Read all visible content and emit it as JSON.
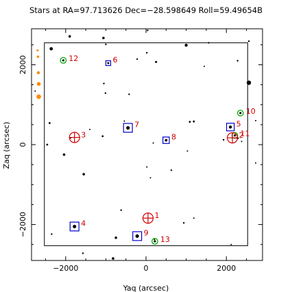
{
  "chart_data": {
    "type": "scatter",
    "title": "Stars at RA=97.713626 Dec=−28.598649 Roll=59.49654B",
    "xlabel": "Yaq (arcsec)",
    "ylabel": "Zaq (arcsec)",
    "xlim": [
      -2850,
      2900
    ],
    "ylim": [
      -2900,
      2900
    ],
    "x_ticks": [
      -2000,
      0,
      2000
    ],
    "x_tick_labels": [
      "−2000",
      "0",
      "2000"
    ],
    "y_ticks": [
      -2000,
      0,
      2000
    ],
    "y_tick_labels": [
      "−2000",
      "0",
      "2000"
    ],
    "grid": false,
    "ccd_box": {
      "x": [
        -2530,
        2530
      ],
      "y": [
        -2530,
        2550
      ]
    },
    "colors": {
      "guide": "#0000cc",
      "acq": "#00aa00",
      "bad": "#cc0000",
      "fid": "#cc0000",
      "bright": "#ff8800",
      "star": "#000000"
    },
    "guide_stars": [
      {
        "id": "4",
        "x": -1780,
        "y": -2050,
        "half": 110
      },
      {
        "id": "6",
        "x": -940,
        "y": 2040,
        "half": 60
      },
      {
        "id": "7",
        "x": -450,
        "y": 420,
        "half": 110
      },
      {
        "id": "8",
        "x": 500,
        "y": 110,
        "half": 80
      },
      {
        "id": "5",
        "x": 2100,
        "y": 440,
        "half": 95
      },
      {
        "id": "9",
        "x": -220,
        "y": -2290,
        "half": 110
      }
    ],
    "acq_stars": [
      {
        "id": "12",
        "x": -2060,
        "y": 2110
      },
      {
        "id": "10",
        "x": 2350,
        "y": 790
      },
      {
        "id": "11",
        "x": 2210,
        "y": 230
      },
      {
        "id": "13",
        "x": 220,
        "y": -2420
      }
    ],
    "fid_lights": [
      {
        "id": "3",
        "x": -1780,
        "y": 180
      },
      {
        "id": "1",
        "x": 50,
        "y": -1840
      },
      {
        "id": "2",
        "x": 2150,
        "y": 170
      }
    ],
    "bright_stars": [
      {
        "x": -2700,
        "y": 2360,
        "r": 1.5
      },
      {
        "x": -2690,
        "y": 2200,
        "r": 1.8
      },
      {
        "x": -2680,
        "y": 1800,
        "r": 2.2
      },
      {
        "x": -2670,
        "y": 1520,
        "r": 2.8
      },
      {
        "x": -2670,
        "y": 1200,
        "r": 3.3
      }
    ],
    "field_stars": [
      {
        "x": -2360,
        "y": 2400,
        "r": 2.4
      },
      {
        "x": -1900,
        "y": 2710,
        "r": 1.8
      },
      {
        "x": -1060,
        "y": 2670,
        "r": 1.8
      },
      {
        "x": -1000,
        "y": 2510,
        "r": 1.2
      },
      {
        "x": 40,
        "y": 2860,
        "r": 1.2
      },
      {
        "x": 20,
        "y": 2300,
        "r": 1.2
      },
      {
        "x": 1000,
        "y": 2490,
        "r": 2.2
      },
      {
        "x": 1560,
        "y": 2550,
        "r": 1.2
      },
      {
        "x": 2560,
        "y": 2590,
        "r": 1.2
      },
      {
        "x": 2280,
        "y": 2100,
        "r": 1.2
      },
      {
        "x": 1450,
        "y": 1960,
        "r": 1.0
      },
      {
        "x": -220,
        "y": 2140,
        "r": 1.2
      },
      {
        "x": 250,
        "y": 2070,
        "r": 1.5
      },
      {
        "x": 2560,
        "y": 1550,
        "r": 3.2
      },
      {
        "x": -1050,
        "y": 1530,
        "r": 1.2
      },
      {
        "x": -1010,
        "y": 1290,
        "r": 1.2
      },
      {
        "x": -420,
        "y": 1260,
        "r": 1.2
      },
      {
        "x": -2400,
        "y": 540,
        "r": 1.4
      },
      {
        "x": -1880,
        "y": 170,
        "r": 1.2
      },
      {
        "x": -1400,
        "y": 380,
        "r": 1.0
      },
      {
        "x": -1080,
        "y": 210,
        "r": 1.4
      },
      {
        "x": -540,
        "y": 590,
        "r": 1.0
      },
      {
        "x": 1090,
        "y": 570,
        "r": 1.4
      },
      {
        "x": 1190,
        "y": 580,
        "r": 1.4
      },
      {
        "x": 180,
        "y": 40,
        "r": 1.0
      },
      {
        "x": 1030,
        "y": -160,
        "r": 1.0
      },
      {
        "x": 1930,
        "y": 120,
        "r": 1.2
      },
      {
        "x": 2280,
        "y": 160,
        "r": 1.5
      },
      {
        "x": 2380,
        "y": 80,
        "r": 1.0
      },
      {
        "x": 2730,
        "y": 600,
        "r": 1.0
      },
      {
        "x": 2730,
        "y": -460,
        "r": 1.0
      },
      {
        "x": -2460,
        "y": 0,
        "r": 1.4
      },
      {
        "x": -2040,
        "y": -250,
        "r": 1.8
      },
      {
        "x": -1550,
        "y": -740,
        "r": 1.8
      },
      {
        "x": 20,
        "y": -560,
        "r": 1.0
      },
      {
        "x": 110,
        "y": -830,
        "r": 1.0
      },
      {
        "x": 630,
        "y": -640,
        "r": 1.2
      },
      {
        "x": 1190,
        "y": -1840,
        "r": 1.0
      },
      {
        "x": 940,
        "y": -1960,
        "r": 1.2
      },
      {
        "x": -620,
        "y": -1640,
        "r": 1.2
      },
      {
        "x": -750,
        "y": -2330,
        "r": 1.8
      },
      {
        "x": -2350,
        "y": -2240,
        "r": 1.2
      },
      {
        "x": -1570,
        "y": -2720,
        "r": 1.2
      },
      {
        "x": -820,
        "y": -2850,
        "r": 1.8
      },
      {
        "x": 2120,
        "y": -2500,
        "r": 1.0
      },
      {
        "x": 210,
        "y": -2370,
        "r": 1.0
      },
      {
        "x": -2760,
        "y": 1340,
        "r": 1.0
      }
    ]
  }
}
